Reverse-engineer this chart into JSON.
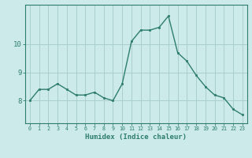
{
  "x": [
    0,
    1,
    2,
    3,
    4,
    5,
    6,
    7,
    8,
    9,
    10,
    11,
    12,
    13,
    14,
    15,
    16,
    17,
    18,
    19,
    20,
    21,
    22,
    23
  ],
  "y": [
    8.0,
    8.4,
    8.4,
    8.6,
    8.4,
    8.2,
    8.2,
    8.3,
    8.1,
    8.0,
    8.6,
    10.1,
    10.5,
    10.5,
    10.6,
    11.0,
    9.7,
    9.4,
    8.9,
    8.5,
    8.2,
    8.1,
    7.7,
    7.5
  ],
  "line_color": "#2e7d6e",
  "marker": "s",
  "marker_size": 2,
  "bg_color": "#cceaea",
  "grid_color": "#aacece",
  "xlabel": "Humidex (Indice chaleur)",
  "yticks": [
    8,
    9,
    10
  ],
  "ylim": [
    7.2,
    11.4
  ],
  "xlim": [
    -0.5,
    23.5
  ],
  "tick_color": "#2e7d6e",
  "label_color": "#2e7d6e",
  "spine_color": "#2e7d6e"
}
